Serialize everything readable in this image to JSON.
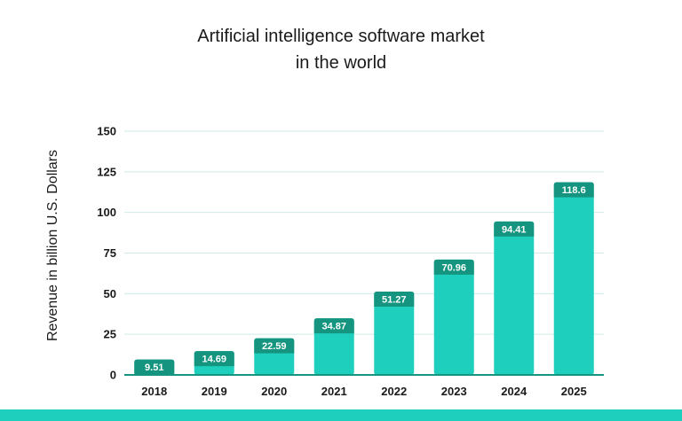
{
  "chart_data": {
    "type": "bar",
    "title_lines": [
      "Artificial intelligence software market",
      "in the world"
    ],
    "xlabel": "",
    "ylabel": "Revenue in billion U.S. Dollars",
    "categories": [
      "2018",
      "2019",
      "2020",
      "2021",
      "2022",
      "2023",
      "2024",
      "2025"
    ],
    "values": [
      9.51,
      14.69,
      22.59,
      34.87,
      51.27,
      70.96,
      94.41,
      118.6
    ],
    "value_labels": [
      "9.51",
      "14.69",
      "22.59",
      "34.87",
      "51.27",
      "70.96",
      "94.41",
      "118.6"
    ],
    "ylim": [
      0,
      150
    ],
    "yticks": [
      0,
      25,
      50,
      75,
      100,
      125,
      150
    ],
    "grid": true,
    "legend": "none",
    "colors": {
      "bar": "#1ecfbd",
      "bar_top": "#15957f",
      "grid": "#cfece8",
      "axis": "#15957f",
      "footer": "#1ecfbd"
    }
  }
}
